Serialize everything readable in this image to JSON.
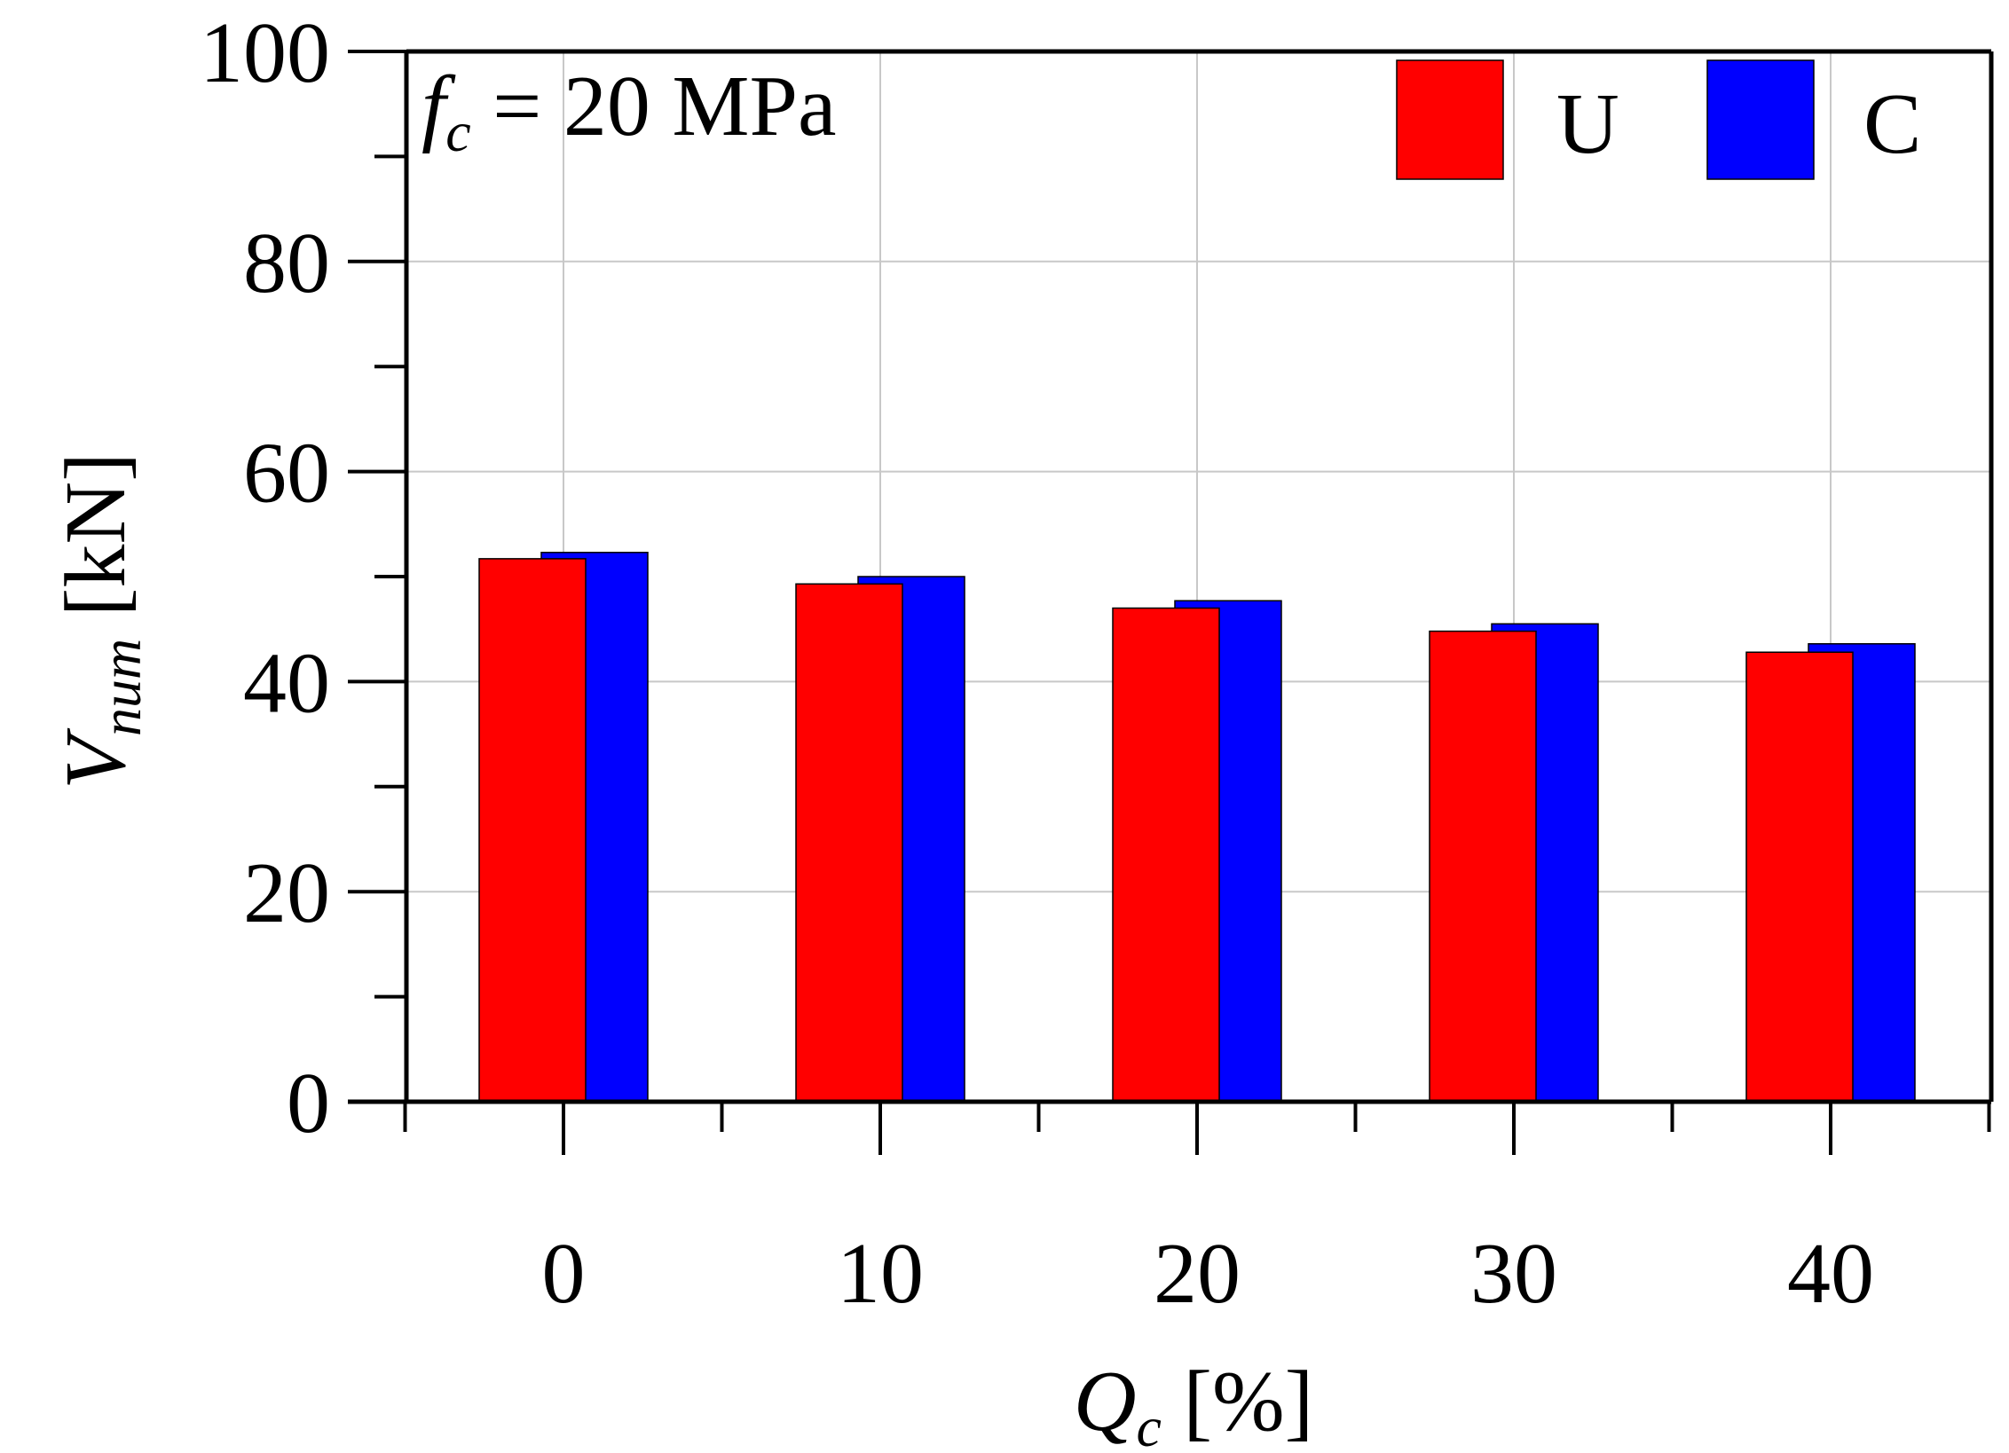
{
  "chart_data": {
    "type": "bar",
    "categories": [
      "0",
      "10",
      "20",
      "30",
      "40"
    ],
    "series": [
      {
        "name": "U",
        "color": "#ff0000",
        "values": [
          51.7,
          49.3,
          47.0,
          44.8,
          42.8
        ]
      },
      {
        "name": "C",
        "color": "#0000ff",
        "values": [
          52.3,
          50.0,
          47.7,
          45.5,
          43.6
        ]
      }
    ],
    "xlabel": {
      "main": "Q",
      "sub": "c",
      "unit": " [%]"
    },
    "ylabel": {
      "main": "V",
      "sub": "num",
      "unit": " [kN]"
    },
    "ylim": [
      0,
      100
    ],
    "yticks": [
      0,
      20,
      40,
      60,
      80,
      100
    ],
    "annotation": {
      "main": "f",
      "sub": "c",
      "rest": " = 20 MPa"
    },
    "grid": true,
    "legend_position": "top-right"
  }
}
